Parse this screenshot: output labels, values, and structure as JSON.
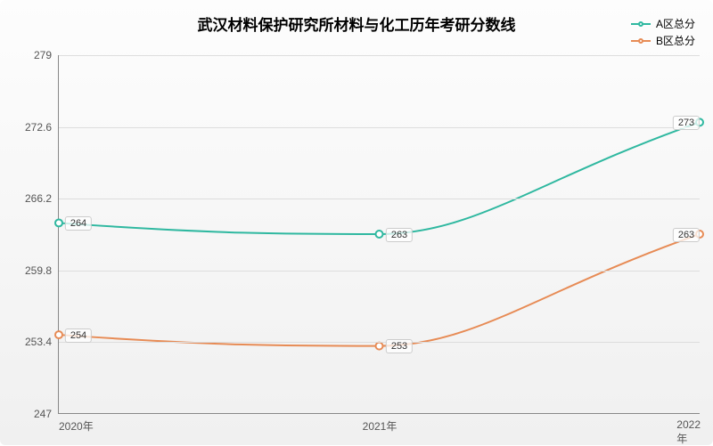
{
  "chart": {
    "type": "line",
    "title": "武汉材料保护研究所材料与化工历年考研分数线",
    "title_fontsize": 17,
    "background_gradient": [
      "#fdfdfd",
      "#f0f0f0"
    ],
    "grid_color": "#dddddd",
    "axis_color": "#888888",
    "text_color": "#555555",
    "legend": {
      "items": [
        {
          "label": "A区总分",
          "color": "#2fb8a0"
        },
        {
          "label": "B区总分",
          "color": "#e78b55"
        }
      ]
    },
    "x": {
      "categories": [
        "2020年",
        "2021年",
        "2022年"
      ]
    },
    "y": {
      "min": 247,
      "max": 279,
      "ticks": [
        247,
        253.4,
        259.8,
        266.2,
        272.6,
        279
      ]
    },
    "series": [
      {
        "name": "A区总分",
        "color": "#2fb8a0",
        "values": [
          264,
          263,
          273
        ],
        "line_width": 2,
        "smooth": true
      },
      {
        "name": "B区总分",
        "color": "#e78b55",
        "values": [
          254,
          253,
          263
        ],
        "line_width": 2,
        "smooth": true
      }
    ]
  }
}
